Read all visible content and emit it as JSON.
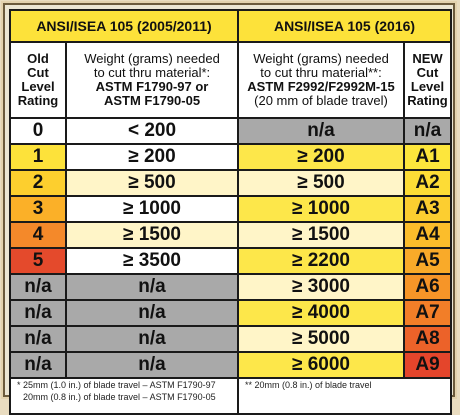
{
  "headers": {
    "left_title": "ANSI/ISEA 105 (2005/2011)",
    "right_title": "ANSI/ISEA 105 (2016)",
    "old_rating": [
      "Old",
      "Cut",
      "Level",
      "Rating"
    ],
    "old_weight": [
      "Weight (grams) needed",
      "to cut thru material*:",
      "ASTM F1790-97 or",
      "ASTM F1790-05"
    ],
    "new_weight": [
      "Weight (grams) needed",
      "to cut thru material**:",
      "ASTM F2992/F2992M-15",
      "(20 mm of blade travel)"
    ],
    "new_rating": [
      "NEW",
      "Cut",
      "Level",
      "Rating"
    ]
  },
  "rows": [
    {
      "old_level": "0",
      "old_weight": "< 200",
      "new_weight": "n/a",
      "new_level": "n/a"
    },
    {
      "old_level": "1",
      "old_weight": "≥ 200",
      "new_weight": "≥ 200",
      "new_level": "A1"
    },
    {
      "old_level": "2",
      "old_weight": "≥ 500",
      "new_weight": "≥ 500",
      "new_level": "A2"
    },
    {
      "old_level": "3",
      "old_weight": "≥ 1000",
      "new_weight": "≥ 1000",
      "new_level": "A3"
    },
    {
      "old_level": "4",
      "old_weight": "≥ 1500",
      "new_weight": "≥ 1500",
      "new_level": "A4"
    },
    {
      "old_level": "5",
      "old_weight": "≥ 3500",
      "new_weight": "≥ 2200",
      "new_level": "A5"
    },
    {
      "old_level": "n/a",
      "old_weight": "n/a",
      "new_weight": "≥ 3000",
      "new_level": "A6"
    },
    {
      "old_level": "n/a",
      "old_weight": "n/a",
      "new_weight": "≥ 4000",
      "new_level": "A7"
    },
    {
      "old_level": "n/a",
      "old_weight": "n/a",
      "new_weight": "≥ 5000",
      "new_level": "A8"
    },
    {
      "old_level": "n/a",
      "old_weight": "n/a",
      "new_weight": "≥ 6000",
      "new_level": "A9"
    }
  ],
  "footnotes": {
    "left": [
      "* 25mm (1.0 in.) of blade travel – ASTM F1790-97",
      "20mm (0.8 in.) of blade travel – ASTM F1790-05"
    ],
    "right": "** 20mm (0.8 in.) of blade travel"
  },
  "colors": {
    "old_levels": [
      "#ffffff",
      "#fde23a",
      "#fdcf2e",
      "#fbb028",
      "#f4892a",
      "#e44a2c"
    ],
    "new_levels": [
      "#a9a9a9",
      "#fde63c",
      "#fddc36",
      "#fcce30",
      "#fbbd2b",
      "#f9aa29",
      "#f69528",
      "#f27e28",
      "#ec6229",
      "#e4452b"
    ],
    "gray": "#a9a9a9",
    "title_yellow": "#fde23a"
  }
}
